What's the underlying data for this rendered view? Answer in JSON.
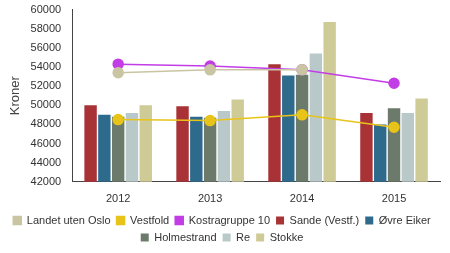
{
  "chart_data": {
    "type": "bar",
    "y_label": "Kroner",
    "categories": [
      "2012",
      "2013",
      "2014",
      "2015"
    ],
    "series": [
      {
        "name": "Sande (Vestf.)",
        "type": "bar",
        "color": "#a83236",
        "values": [
          50000,
          49900,
          54300,
          49200
        ]
      },
      {
        "name": "Øvre Eiker",
        "type": "bar",
        "color": "#2d6a8c",
        "values": [
          49000,
          48800,
          53100,
          48000
        ]
      },
      {
        "name": "Holmestrand",
        "type": "bar",
        "color": "#6b7a6b",
        "values": [
          48800,
          48700,
          53200,
          49700
        ]
      },
      {
        "name": "Re",
        "type": "bar",
        "color": "#b9c9c9",
        "values": [
          49200,
          49400,
          55400,
          49200
        ]
      },
      {
        "name": "Stokke",
        "type": "bar",
        "color": "#cfcb97",
        "values": [
          50000,
          50600,
          58700,
          50700
        ]
      },
      {
        "name": "Landet uten Oslo",
        "type": "line",
        "marker": "circle",
        "color": "#c9c5a2",
        "values": [
          53400,
          53700,
          53700,
          null
        ]
      },
      {
        "name": "Vestfold",
        "type": "line",
        "marker": "circle",
        "color": "#e8c41a",
        "values": [
          48500,
          48400,
          49000,
          47700
        ]
      },
      {
        "name": "Kostragruppe 10",
        "type": "line",
        "marker": "circle",
        "color": "#c23de6",
        "values": [
          54300,
          54100,
          53700,
          52300
        ]
      }
    ],
    "ylim": [
      42000,
      60000
    ],
    "yticks": [
      42000,
      44000,
      46000,
      48000,
      50000,
      52000,
      54000,
      56000,
      58000,
      60000
    ],
    "grid": false,
    "legend": "bottom"
  }
}
